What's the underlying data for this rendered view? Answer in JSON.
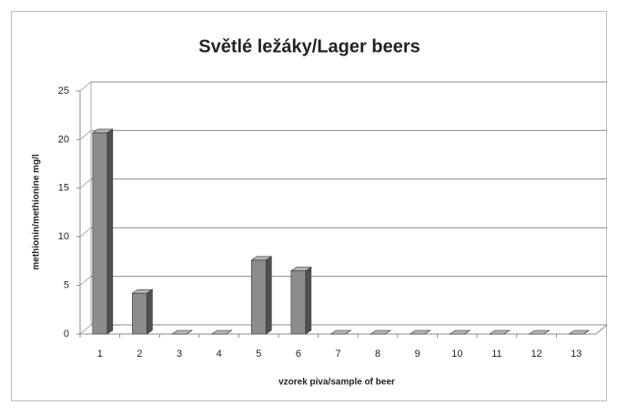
{
  "chart_data": {
    "type": "bar3d",
    "title": "Světlé ležáky/Lager beers",
    "x_label": "vzorek piva/sample of beer",
    "y_label": "methionin/methionine mg/l",
    "categories": [
      "1",
      "2",
      "3",
      "4",
      "5",
      "6",
      "7",
      "8",
      "9",
      "10",
      "11",
      "12",
      "13"
    ],
    "values": [
      20.7,
      4.2,
      0,
      0,
      7.6,
      6.5,
      0,
      0,
      0,
      0,
      0,
      0,
      0
    ],
    "color": "#8c8c8c",
    "ylim": [
      0,
      25
    ],
    "yticks": [
      0,
      5,
      10,
      15,
      20,
      25
    ],
    "grid": true
  }
}
